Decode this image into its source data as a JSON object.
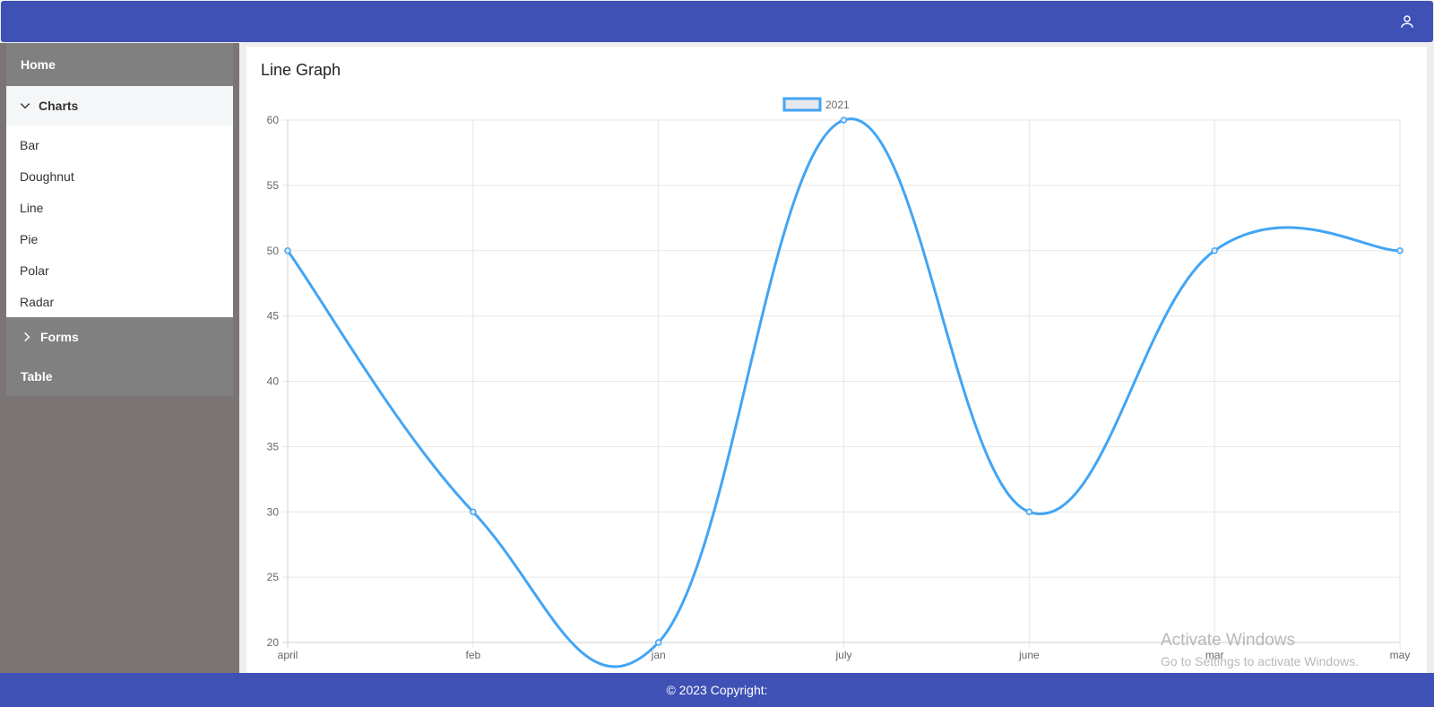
{
  "sidebar": {
    "home": "Home",
    "charts": "Charts",
    "chart_items": [
      "Bar",
      "Doughnut",
      "Line",
      "Pie",
      "Polar",
      "Radar"
    ],
    "forms": "Forms",
    "table": "Table"
  },
  "card": {
    "title": "Line Graph"
  },
  "chart_data": {
    "type": "line",
    "categories": [
      "april",
      "feb",
      "jan",
      "july",
      "june",
      "mar",
      "may"
    ],
    "series": [
      {
        "name": "2021",
        "values": [
          50,
          30,
          20,
          60,
          30,
          50,
          50
        ]
      }
    ],
    "ylim": [
      20,
      60
    ],
    "yticks": [
      20,
      25,
      30,
      35,
      40,
      45,
      50,
      55,
      60
    ],
    "grid": true,
    "legend": "top-center",
    "line_color": "#42a5f5"
  },
  "watermark": {
    "line1": "Activate Windows",
    "line2": "Go to Settings to activate Windows."
  },
  "footer": {
    "text": "© 2023 Copyright:"
  },
  "icons": {
    "user": "user-icon",
    "charts_chevron": "chevron-down-icon",
    "forms_chevron": "chevron-right-icon"
  }
}
